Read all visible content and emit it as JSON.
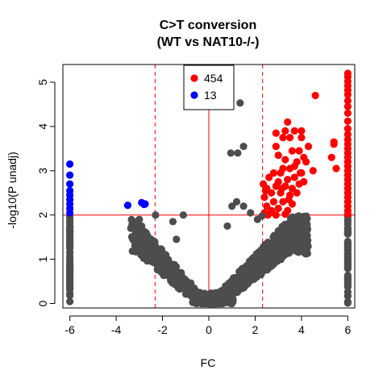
{
  "chart_data": {
    "type": "scatter",
    "title_line1": "C>T conversion",
    "title_line2": "(WT vs NAT10-/-)",
    "xlabel": "FC",
    "ylabel": "-log10(P unadj)",
    "xlim": [
      -6.3,
      6.3
    ],
    "ylim": [
      -0.1,
      5.4
    ],
    "xticks": [
      -6,
      -4,
      -2,
      0,
      2,
      4,
      6
    ],
    "yticks": [
      0,
      1,
      2,
      3,
      4,
      5
    ],
    "grid": false,
    "threshold_y": 2,
    "threshold_x": [
      -2.32,
      2.32
    ],
    "center_x": 0,
    "legend": {
      "placement": "top-center",
      "entries": [
        {
          "label": "454",
          "color": "#ff0000"
        },
        {
          "label": "13",
          "color": "#0000ff"
        }
      ]
    },
    "colors": {
      "not_significant": "#4d4d4d",
      "up": "#ff0000",
      "down": "#0000ff",
      "threshold_line": "#ff0000"
    },
    "series": [
      {
        "name": "454",
        "color": "#ff0000",
        "points": [
          [
            6,
            5.2
          ],
          [
            6,
            5.12
          ],
          [
            6,
            5.02
          ],
          [
            6,
            4.92
          ],
          [
            6,
            4.82
          ],
          [
            6,
            4.72
          ],
          [
            6,
            4.58
          ],
          [
            6,
            4.45
          ],
          [
            6,
            4.3
          ],
          [
            6,
            4.12
          ],
          [
            6,
            3.95
          ],
          [
            6,
            3.82
          ],
          [
            6,
            3.7
          ],
          [
            6,
            3.6
          ],
          [
            6,
            3.5
          ],
          [
            6,
            3.4
          ],
          [
            6,
            3.3
          ],
          [
            6,
            3.2
          ],
          [
            6,
            3.1
          ],
          [
            6,
            3.0
          ],
          [
            6,
            2.9
          ],
          [
            6,
            2.8
          ],
          [
            6,
            2.7
          ],
          [
            6,
            2.6
          ],
          [
            6,
            2.5
          ],
          [
            6,
            2.4
          ],
          [
            6,
            2.3
          ],
          [
            6,
            2.2
          ],
          [
            6,
            2.1
          ],
          [
            6,
            2.02
          ],
          [
            4.6,
            4.7
          ],
          [
            5.3,
            3.3
          ],
          [
            5.5,
            3.05
          ],
          [
            5.4,
            3.6
          ],
          [
            5.4,
            3.65
          ],
          [
            3.4,
            4.1
          ],
          [
            3.3,
            3.9
          ],
          [
            2.9,
            3.85
          ],
          [
            3.7,
            3.9
          ],
          [
            4.0,
            3.9
          ],
          [
            4.0,
            3.75
          ],
          [
            3.5,
            3.75
          ],
          [
            3.2,
            3.75
          ],
          [
            2.9,
            3.55
          ],
          [
            3.0,
            3.35
          ],
          [
            3.6,
            3.45
          ],
          [
            3.9,
            3.45
          ],
          [
            3.3,
            3.25
          ],
          [
            3.7,
            3.1
          ],
          [
            4.1,
            3.3
          ],
          [
            4.3,
            3.55
          ],
          [
            4.2,
            3.2
          ],
          [
            4.5,
            3.0
          ],
          [
            3.8,
            3.2
          ],
          [
            3.5,
            3.05
          ],
          [
            3.1,
            2.95
          ],
          [
            3.2,
            3.05
          ],
          [
            2.8,
            2.95
          ],
          [
            4.0,
            2.95
          ],
          [
            3.7,
            2.85
          ],
          [
            3.4,
            2.8
          ],
          [
            3.0,
            2.75
          ],
          [
            2.6,
            2.85
          ],
          [
            2.5,
            2.6
          ],
          [
            2.9,
            2.65
          ],
          [
            3.3,
            2.65
          ],
          [
            3.6,
            2.6
          ],
          [
            3.9,
            2.7
          ],
          [
            4.1,
            2.75
          ],
          [
            2.4,
            2.4
          ],
          [
            2.7,
            2.5
          ],
          [
            3.1,
            2.5
          ],
          [
            3.5,
            2.45
          ],
          [
            3.8,
            2.5
          ],
          [
            2.5,
            2.2
          ],
          [
            2.8,
            2.3
          ],
          [
            3.2,
            2.3
          ],
          [
            3.6,
            2.25
          ],
          [
            2.4,
            2.05
          ],
          [
            2.7,
            2.1
          ],
          [
            3.0,
            2.15
          ],
          [
            3.4,
            2.1
          ],
          [
            2.55,
            2.0
          ],
          [
            2.9,
            2.0
          ],
          [
            3.3,
            2.02
          ],
          [
            3.15,
            2.6
          ],
          [
            2.35,
            2.7
          ],
          [
            2.65,
            2.05
          ],
          [
            3.45,
            2.35
          ],
          [
            3.95,
            2.95
          ],
          [
            2.45,
            2.55
          ]
        ]
      },
      {
        "name": "13",
        "color": "#0000ff",
        "points": [
          [
            -6,
            3.15
          ],
          [
            -6,
            2.9
          ],
          [
            -6,
            2.7
          ],
          [
            -6,
            2.55
          ],
          [
            -6,
            2.45
          ],
          [
            -6,
            2.35
          ],
          [
            -6,
            2.25
          ],
          [
            -6,
            2.15
          ],
          [
            -6,
            2.05
          ],
          [
            -3.5,
            2.22
          ],
          [
            -2.9,
            2.28
          ],
          [
            -2.8,
            2.24
          ],
          [
            -2.75,
            2.25
          ]
        ]
      },
      {
        "name": "",
        "color": "#4d4d4d",
        "points": [
          [
            1.35,
            4.53
          ],
          [
            0.95,
            3.4
          ],
          [
            1.25,
            3.4
          ],
          [
            1.5,
            3.55
          ],
          [
            -2.3,
            2.0
          ],
          [
            -1.1,
            2.0
          ],
          [
            -3.1,
            1.8
          ],
          [
            -2.9,
            1.75
          ],
          [
            -1.55,
            1.85
          ],
          [
            -3.0,
            1.9
          ],
          [
            -1.4,
            1.45
          ],
          [
            2.3,
            1.98
          ],
          [
            2.1,
            1.9
          ],
          [
            1.8,
            2.05
          ],
          [
            1.5,
            2.2
          ],
          [
            1.2,
            2.3
          ],
          [
            1.0,
            2.2
          ],
          [
            0.8,
            1.75
          ]
        ]
      }
    ]
  }
}
